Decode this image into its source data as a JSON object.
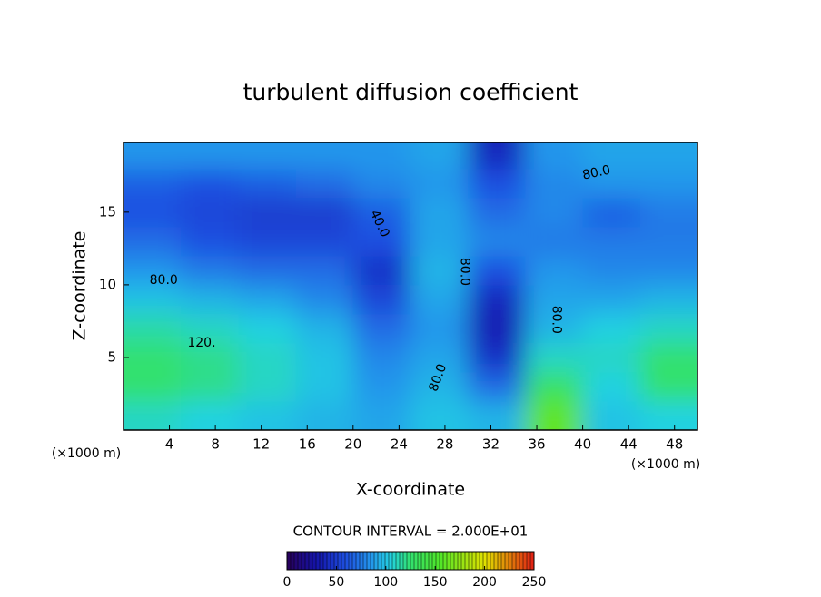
{
  "chart_data": {
    "type": "heatmap",
    "title": "turbulent diffusion coefficient",
    "x_label": "X-coordinate",
    "y_label": "Z-coordinate",
    "x_unit": "(×1000 m)",
    "y_unit": "(×1000 m)",
    "x": [
      2.5,
      7.5,
      12.5,
      17.5,
      22.5,
      27.5,
      32.5,
      37.5,
      42.5,
      47.5
    ],
    "y": [
      1,
      3,
      5,
      7,
      9,
      11,
      13,
      15,
      17,
      19
    ],
    "z": [
      [
        110,
        105,
        100,
        95,
        90,
        100,
        95,
        160,
        100,
        105
      ],
      [
        125,
        120,
        110,
        100,
        85,
        95,
        70,
        130,
        105,
        125
      ],
      [
        125,
        120,
        110,
        100,
        80,
        90,
        45,
        110,
        110,
        125
      ],
      [
        115,
        110,
        105,
        95,
        70,
        85,
        35,
        95,
        105,
        110
      ],
      [
        100,
        95,
        90,
        80,
        55,
        90,
        40,
        90,
        90,
        95
      ],
      [
        85,
        75,
        70,
        70,
        45,
        95,
        60,
        85,
        80,
        80
      ],
      [
        70,
        60,
        55,
        55,
        60,
        90,
        80,
        75,
        75,
        75
      ],
      [
        60,
        55,
        50,
        50,
        65,
        90,
        70,
        80,
        65,
        75
      ],
      [
        65,
        60,
        65,
        70,
        80,
        85,
        60,
        80,
        85,
        85
      ],
      [
        85,
        85,
        85,
        85,
        85,
        90,
        40,
        85,
        90,
        90
      ]
    ],
    "xlim": [
      0,
      50
    ],
    "ylim": [
      0,
      19.8
    ],
    "xticks": [
      4,
      8,
      12,
      16,
      20,
      24,
      28,
      32,
      36,
      40,
      44,
      48
    ],
    "yticks": [
      5,
      10,
      15
    ],
    "contour_labels": [
      "80.0",
      "120.",
      "40.0",
      "80.0",
      "80.0",
      "80.0",
      "80.0"
    ],
    "contour_interval": "CONTOUR INTERVAL = 2.000E+01",
    "colorbar_lim": [
      0,
      250
    ],
    "colorbar_ticks": [
      0,
      50,
      100,
      150,
      200,
      250
    ]
  }
}
